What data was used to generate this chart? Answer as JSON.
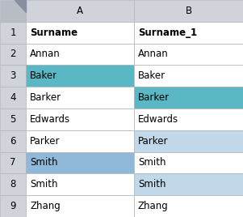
{
  "col_header_row": [
    "",
    "A",
    "B"
  ],
  "row_numbers": [
    "1",
    "2",
    "3",
    "4",
    "5",
    "6",
    "7",
    "8",
    "9"
  ],
  "col_A": [
    "Surname",
    "Annan",
    "Baker",
    "Barker",
    "Edwards",
    "Parker",
    "Smith",
    "Smith",
    "Zhang"
  ],
  "col_B": [
    "Surname_1",
    "Annan",
    "Baker",
    "Barker",
    "Edwards",
    "Parker",
    "Smith",
    "Smith",
    "Zhang"
  ],
  "cell_colors_A": [
    "white",
    "white",
    "#5ab8c4",
    "white",
    "white",
    "white",
    "#90b8d8",
    "white",
    "white"
  ],
  "cell_colors_B": [
    "white",
    "white",
    "white",
    "#5ab8c4",
    "white",
    "#c0d8ea",
    "white",
    "#c0d8ea",
    "white"
  ],
  "row_header_bg": "#d0d4da",
  "col_header_bg": "#d0d4da",
  "corner_bg": "#b8bcc4",
  "grid_color": "#b0b4b8",
  "font_size": 8.5,
  "bold_row": 0,
  "fig_width": 3.01,
  "fig_height": 2.68,
  "dpi": 100
}
